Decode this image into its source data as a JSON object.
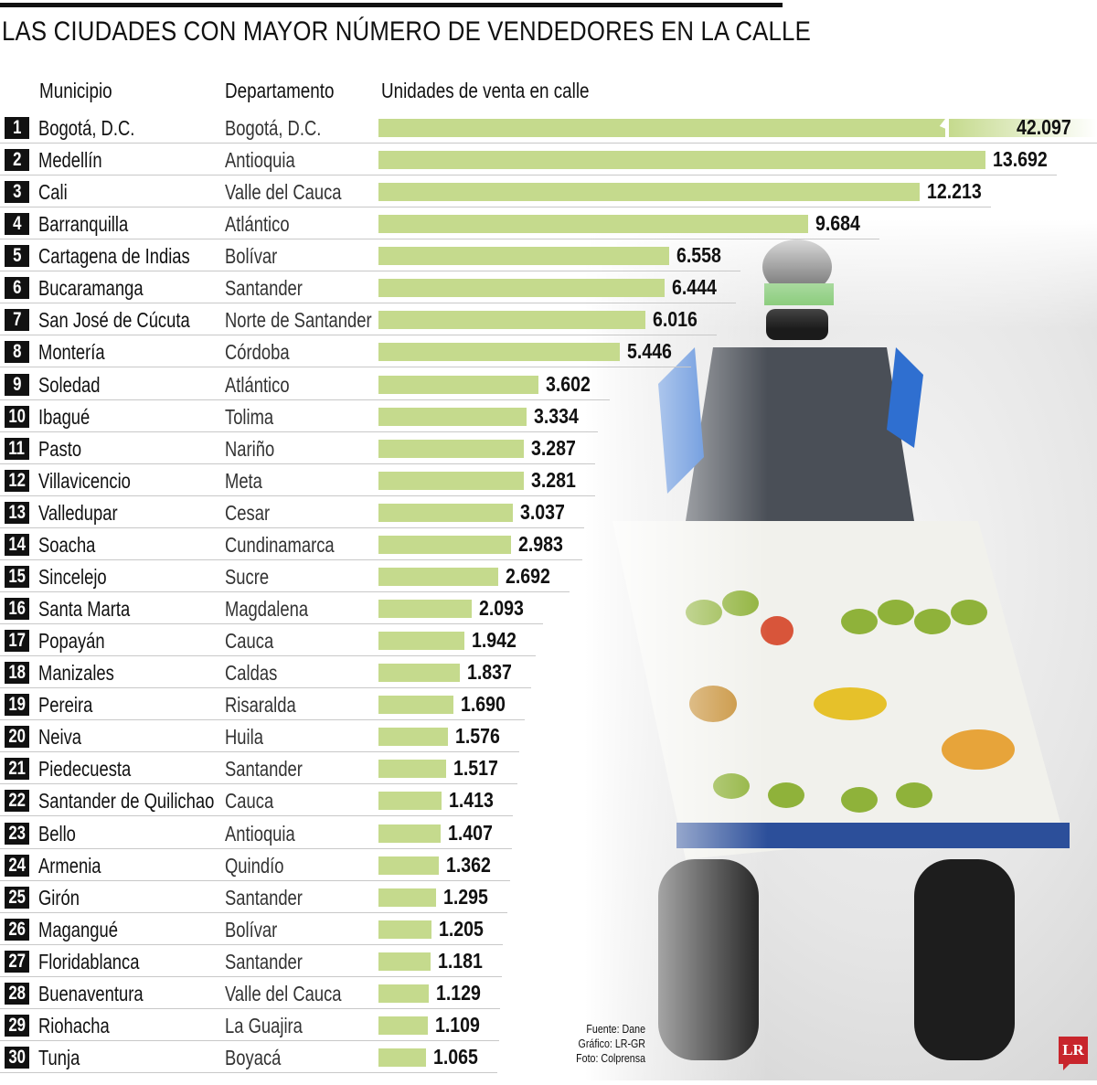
{
  "title": "LAS CIUDADES CON MAYOR NÚMERO DE VENDEDORES EN LA CALLE",
  "credits": {
    "source": "Fuente: Dane",
    "graphic": "Gráfico: LR-GR",
    "photo": "Foto: Colprensa"
  },
  "logo": "LR",
  "colors": {
    "bar": "#c5da8d",
    "rank_bg": "#111111"
  },
  "chart_data": {
    "type": "bar",
    "title": "LAS CIUDADES CON MAYOR NÚMERO DE VENDEDORES EN LA CALLE",
    "columns": [
      "Municipio",
      "Departamento",
      "Unidades de venta en calle"
    ],
    "xlabel": "",
    "ylabel": "Unidades de venta en calle",
    "truncated_bar_rank": 1,
    "rows": [
      {
        "rank": "1",
        "municipio": "Bogotá, D.C.",
        "departamento": "Bogotá, D.C.",
        "value": 42097,
        "label": "42.097"
      },
      {
        "rank": "2",
        "municipio": "Medellín",
        "departamento": "Antioquia",
        "value": 13692,
        "label": "13.692"
      },
      {
        "rank": "3",
        "municipio": "Cali",
        "departamento": "Valle del Cauca",
        "value": 12213,
        "label": "12.213"
      },
      {
        "rank": "4",
        "municipio": "Barranquilla",
        "departamento": "Atlántico",
        "value": 9684,
        "label": "9.684"
      },
      {
        "rank": "5",
        "municipio": "Cartagena de Indias",
        "departamento": "Bolívar",
        "value": 6558,
        "label": "6.558"
      },
      {
        "rank": "6",
        "municipio": "Bucaramanga",
        "departamento": "Santander",
        "value": 6444,
        "label": "6.444"
      },
      {
        "rank": "7",
        "municipio": "San José de Cúcuta",
        "departamento": "Norte de Santander",
        "value": 6016,
        "label": "6.016"
      },
      {
        "rank": "8",
        "municipio": "Montería",
        "departamento": "Córdoba",
        "value": 5446,
        "label": "5.446"
      },
      {
        "rank": "9",
        "municipio": "Soledad",
        "departamento": "Atlántico",
        "value": 3602,
        "label": "3.602"
      },
      {
        "rank": "10",
        "municipio": "Ibagué",
        "departamento": "Tolima",
        "value": 3334,
        "label": "3.334"
      },
      {
        "rank": "11",
        "municipio": "Pasto",
        "departamento": "Nariño",
        "value": 3287,
        "label": "3.287"
      },
      {
        "rank": "12",
        "municipio": "Villavicencio",
        "departamento": "Meta",
        "value": 3281,
        "label": "3.281"
      },
      {
        "rank": "13",
        "municipio": "Valledupar",
        "departamento": "Cesar",
        "value": 3037,
        "label": "3.037"
      },
      {
        "rank": "14",
        "municipio": "Soacha",
        "departamento": "Cundinamarca",
        "value": 2983,
        "label": "2.983"
      },
      {
        "rank": "15",
        "municipio": "Sincelejo",
        "departamento": "Sucre",
        "value": 2692,
        "label": "2.692"
      },
      {
        "rank": "16",
        "municipio": "Santa Marta",
        "departamento": "Magdalena",
        "value": 2093,
        "label": "2.093"
      },
      {
        "rank": "17",
        "municipio": "Popayán",
        "departamento": "Cauca",
        "value": 1942,
        "label": "1.942"
      },
      {
        "rank": "18",
        "municipio": "Manizales",
        "departamento": "Caldas",
        "value": 1837,
        "label": "1.837"
      },
      {
        "rank": "19",
        "municipio": "Pereira",
        "departamento": "Risaralda",
        "value": 1690,
        "label": "1.690"
      },
      {
        "rank": "20",
        "municipio": "Neiva",
        "departamento": "Huila",
        "value": 1576,
        "label": "1.576"
      },
      {
        "rank": "21",
        "municipio": "Piedecuesta",
        "departamento": "Santander",
        "value": 1517,
        "label": "1.517"
      },
      {
        "rank": "22",
        "municipio": "Santander de Quilichao",
        "departamento": "Cauca",
        "value": 1413,
        "label": "1.413"
      },
      {
        "rank": "23",
        "municipio": "Bello",
        "departamento": "Antioquia",
        "value": 1407,
        "label": "1.407"
      },
      {
        "rank": "24",
        "municipio": "Armenia",
        "departamento": "Quindío",
        "value": 1362,
        "label": "1.362"
      },
      {
        "rank": "25",
        "municipio": "Girón",
        "departamento": "Santander",
        "value": 1295,
        "label": "1.295"
      },
      {
        "rank": "26",
        "municipio": "Magangué",
        "departamento": "Bolívar",
        "value": 1205,
        "label": "1.205"
      },
      {
        "rank": "27",
        "municipio": "Floridablanca",
        "departamento": "Santander",
        "value": 1181,
        "label": "1.181"
      },
      {
        "rank": "28",
        "municipio": "Buenaventura",
        "departamento": "Valle del Cauca",
        "value": 1129,
        "label": "1.129"
      },
      {
        "rank": "29",
        "municipio": "Riohacha",
        "departamento": "La Guajira",
        "value": 1109,
        "label": "1.109"
      },
      {
        "rank": "30",
        "municipio": "Tunja",
        "departamento": "Boyacá",
        "value": 1065,
        "label": "1.065"
      }
    ]
  }
}
